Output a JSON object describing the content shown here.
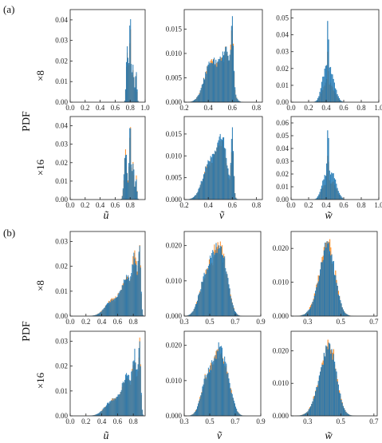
{
  "figure": {
    "section_a_label": "(a)",
    "section_b_label": "(b)",
    "pdf_label": "PDF",
    "row_x8_label": "×8",
    "row_x16_label": "×16",
    "xlabel_u": "ũ",
    "xlabel_v": "ṽ",
    "xlabel_w": "w̃",
    "colors": {
      "series_a": "#1f77b4",
      "series_b": "#ff7f0e"
    }
  },
  "chart_data": [
    {
      "type": "histogram",
      "section": "(a)",
      "row": "×8",
      "ylabel": "PDF",
      "xlabel": "",
      "xlim": [
        0,
        1.0
      ],
      "ylim": [
        0,
        0.045
      ],
      "xticks": [
        "0.0",
        "0.2",
        "0.4",
        "0.6",
        "0.8",
        "1.0"
      ],
      "yticks": [
        "0.00",
        "0.01",
        "0.02",
        "0.03",
        "0.04"
      ],
      "peaks": [
        [
          0.76,
          0.7,
          0.012
        ],
        [
          0.8,
          1.0,
          0.012
        ],
        [
          0.84,
          0.45,
          0.012
        ],
        [
          0.88,
          0.4,
          0.01
        ]
      ],
      "series": [
        {
          "name": "",
          "color": "#1f77b4",
          "peak_pdf": 0.041
        },
        {
          "name": "",
          "color": "#ff7f0e",
          "peak_pdf": 0.036
        }
      ]
    },
    {
      "type": "histogram",
      "section": "(a)",
      "row": "×8",
      "xlabel": "",
      "xlim": [
        0.2,
        0.85
      ],
      "ylim": [
        0,
        0.019
      ],
      "xticks": [
        "0.2",
        "0.4",
        "0.6",
        "0.8"
      ],
      "yticks": [
        "0.000",
        "0.005",
        "0.010",
        "0.015"
      ],
      "peaks": [
        [
          0.43,
          0.7,
          0.06
        ],
        [
          0.55,
          0.78,
          0.04
        ],
        [
          0.6,
          1.0,
          0.01
        ]
      ],
      "series": [
        {
          "name": "",
          "color": "#1f77b4",
          "peak_pdf": 0.018
        },
        {
          "name": "",
          "color": "#ff7f0e",
          "peak_pdf": 0.017
        }
      ]
    },
    {
      "type": "histogram",
      "section": "(a)",
      "row": "×8",
      "xlabel": "",
      "xlim": [
        0,
        1.0
      ],
      "ylim": [
        0,
        0.055
      ],
      "xticks": [
        "0.0",
        "0.2",
        "0.4",
        "0.6",
        "0.8",
        "1.0"
      ],
      "yticks": [
        "0.00",
        "0.01",
        "0.02",
        "0.03",
        "0.04",
        "0.05"
      ],
      "peaks": [
        [
          0.38,
          0.4,
          0.04
        ],
        [
          0.42,
          1.0,
          0.006
        ],
        [
          0.45,
          0.55,
          0.05
        ]
      ],
      "series": [
        {
          "name": "",
          "color": "#1f77b4",
          "peak_pdf": 0.052
        },
        {
          "name": "",
          "color": "#ff7f0e",
          "peak_pdf": 0.03
        }
      ]
    },
    {
      "type": "histogram",
      "section": "(a)",
      "row": "×16",
      "ylabel": "PDF",
      "xlabel": "ũ",
      "xlim": [
        0,
        1.0
      ],
      "ylim": [
        0,
        0.045
      ],
      "xticks": [
        "0.0",
        "0.2",
        "0.4",
        "0.6",
        "0.8"
      ],
      "yticks": [
        "0.00",
        "0.01",
        "0.02",
        "0.03",
        "0.04"
      ],
      "peaks": [
        [
          0.74,
          0.6,
          0.02
        ],
        [
          0.8,
          1.0,
          0.012
        ],
        [
          0.84,
          0.5,
          0.012
        ],
        [
          0.88,
          0.3,
          0.01
        ]
      ],
      "series": [
        {
          "name": "",
          "color": "#1f77b4",
          "peak_pdf": 0.042
        },
        {
          "name": "",
          "color": "#ff7f0e",
          "peak_pdf": 0.04
        }
      ]
    },
    {
      "type": "histogram",
      "section": "(a)",
      "row": "×16",
      "xlabel": "ṽ",
      "xlim": [
        0.2,
        0.85
      ],
      "ylim": [
        0,
        0.019
      ],
      "xticks": [
        "0.2",
        "0.4",
        "0.6",
        "0.8"
      ],
      "yticks": [
        "0.000",
        "0.005",
        "0.010",
        "0.015"
      ],
      "peaks": [
        [
          0.42,
          0.65,
          0.06
        ],
        [
          0.52,
          0.8,
          0.04
        ],
        [
          0.6,
          1.0,
          0.01
        ]
      ],
      "series": [
        {
          "name": "",
          "color": "#1f77b4",
          "peak_pdf": 0.0175
        },
        {
          "name": "",
          "color": "#ff7f0e",
          "peak_pdf": 0.016
        }
      ]
    },
    {
      "type": "histogram",
      "section": "(a)",
      "row": "×16",
      "xlabel": "w̃",
      "xlim": [
        0,
        1.0
      ],
      "ylim": [
        0,
        0.065
      ],
      "xticks": [
        "0.0",
        "0.2",
        "0.4",
        "0.6",
        "0.8",
        "1.0"
      ],
      "yticks": [
        "0.00",
        "0.01",
        "0.02",
        "0.03",
        "0.04",
        "0.05",
        "0.06"
      ],
      "peaks": [
        [
          0.38,
          0.35,
          0.04
        ],
        [
          0.42,
          1.0,
          0.008
        ],
        [
          0.47,
          0.5,
          0.05
        ]
      ],
      "series": [
        {
          "name": "",
          "color": "#1f77b4",
          "peak_pdf": 0.061
        },
        {
          "name": "",
          "color": "#ff7f0e",
          "peak_pdf": 0.04
        }
      ]
    },
    {
      "type": "histogram",
      "section": "(b)",
      "row": "×8",
      "ylabel": "PDF",
      "xlabel": "",
      "xlim": [
        0,
        0.95
      ],
      "ylim": [
        0,
        0.034
      ],
      "xticks": [
        "0.0",
        "0.2",
        "0.4",
        "0.6",
        "0.8"
      ],
      "yticks": [
        "0.00",
        "0.01",
        "0.02",
        "0.03"
      ],
      "peaks": [
        [
          0.55,
          0.25,
          0.1
        ],
        [
          0.72,
          0.55,
          0.06
        ],
        [
          0.82,
          0.8,
          0.03
        ],
        [
          0.88,
          1.0,
          0.015
        ]
      ],
      "series": [
        {
          "name": "",
          "color": "#1f77b4",
          "peak_pdf": 0.032
        },
        {
          "name": "",
          "color": "#ff7f0e",
          "peak_pdf": 0.031
        }
      ]
    },
    {
      "type": "histogram",
      "section": "(b)",
      "row": "×8",
      "xlabel": "",
      "xlim": [
        0.3,
        0.9
      ],
      "ylim": [
        0,
        0.024
      ],
      "xticks": [
        "0.3",
        "0.5",
        "0.7",
        "0.9"
      ],
      "yticks": [
        "0.000",
        "0.010",
        "0.020"
      ],
      "peaks": [
        [
          0.47,
          0.75,
          0.05
        ],
        [
          0.56,
          1.0,
          0.045
        ],
        [
          0.62,
          0.6,
          0.04
        ]
      ],
      "series": [
        {
          "name": "",
          "color": "#1f77b4",
          "peak_pdf": 0.022
        },
        {
          "name": "",
          "color": "#ff7f0e",
          "peak_pdf": 0.021
        }
      ]
    },
    {
      "type": "histogram",
      "section": "(b)",
      "row": "×8",
      "xlabel": "",
      "xlim": [
        0.2,
        0.72
      ],
      "ylim": [
        0,
        0.025
      ],
      "xticks": [
        "0.3",
        "0.5",
        "0.7"
      ],
      "yticks": [
        "0.000",
        "0.010",
        "0.020"
      ],
      "peaks": [
        [
          0.4,
          0.8,
          0.05
        ],
        [
          0.43,
          1.0,
          0.04
        ]
      ],
      "series": [
        {
          "name": "",
          "color": "#1f77b4",
          "peak_pdf": 0.023
        },
        {
          "name": "",
          "color": "#ff7f0e",
          "peak_pdf": 0.023
        }
      ]
    },
    {
      "type": "histogram",
      "section": "(b)",
      "row": "×16",
      "ylabel": "PDF",
      "xlabel": "ũ",
      "xlim": [
        0,
        0.95
      ],
      "ylim": [
        0,
        0.034
      ],
      "xticks": [
        "0.0",
        "0.2",
        "0.4",
        "0.6",
        "0.8"
      ],
      "yticks": [
        "0.00",
        "0.01",
        "0.02",
        "0.03"
      ],
      "peaks": [
        [
          0.55,
          0.25,
          0.1
        ],
        [
          0.72,
          0.55,
          0.06
        ],
        [
          0.82,
          0.8,
          0.03
        ],
        [
          0.88,
          1.0,
          0.015
        ]
      ],
      "series": [
        {
          "name": "",
          "color": "#1f77b4",
          "peak_pdf": 0.032
        },
        {
          "name": "",
          "color": "#ff7f0e",
          "peak_pdf": 0.03
        }
      ]
    },
    {
      "type": "histogram",
      "section": "(b)",
      "row": "×16",
      "xlabel": "ṽ",
      "xlim": [
        0.3,
        0.9
      ],
      "ylim": [
        0,
        0.024
      ],
      "xticks": [
        "0.3",
        "0.5",
        "0.7",
        "0.9"
      ],
      "yticks": [
        "0.000",
        "0.010",
        "0.020"
      ],
      "peaks": [
        [
          0.48,
          0.7,
          0.045
        ],
        [
          0.57,
          1.0,
          0.04
        ],
        [
          0.64,
          0.55,
          0.04
        ]
      ],
      "series": [
        {
          "name": "",
          "color": "#1f77b4",
          "peak_pdf": 0.021
        },
        {
          "name": "",
          "color": "#ff7f0e",
          "peak_pdf": 0.02
        }
      ]
    },
    {
      "type": "histogram",
      "section": "(b)",
      "row": "×16",
      "xlabel": "w̃",
      "xlim": [
        0.2,
        0.72
      ],
      "ylim": [
        0,
        0.026
      ],
      "xticks": [
        "0.3",
        "0.5",
        "0.7"
      ],
      "yticks": [
        "0.000",
        "0.010",
        "0.020"
      ],
      "peaks": [
        [
          0.4,
          0.8,
          0.05
        ],
        [
          0.44,
          1.0,
          0.04
        ]
      ],
      "series": [
        {
          "name": "",
          "color": "#1f77b4",
          "peak_pdf": 0.024
        },
        {
          "name": "",
          "color": "#ff7f0e",
          "peak_pdf": 0.024
        }
      ]
    }
  ]
}
